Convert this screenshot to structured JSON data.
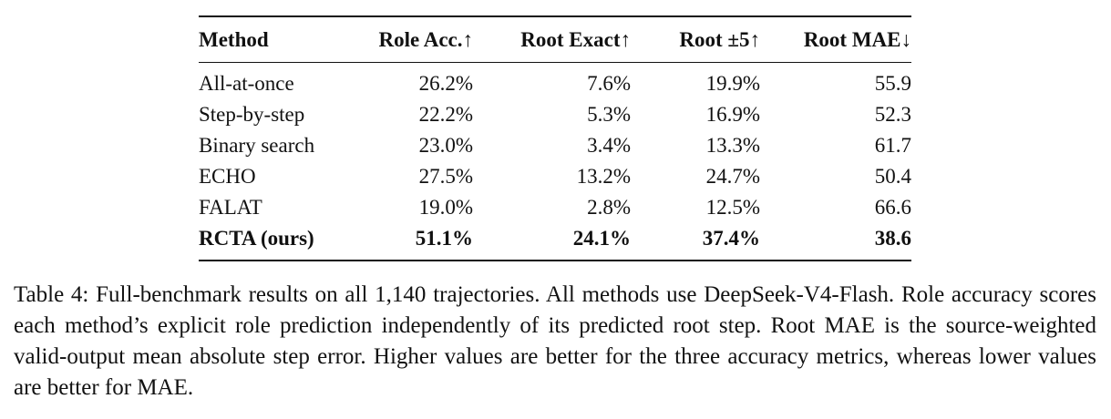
{
  "table": {
    "header": [
      "Method",
      "Role Acc.↑",
      "Root Exact↑",
      "Root ±5↑",
      "Root MAE↓"
    ],
    "rows": [
      [
        "All-at-once",
        "26.2%",
        "7.6%",
        "19.9%",
        "55.9"
      ],
      [
        "Step-by-step",
        "22.2%",
        "5.3%",
        "16.9%",
        "52.3"
      ],
      [
        "Binary search",
        "23.0%",
        "3.4%",
        "13.3%",
        "61.7"
      ],
      [
        "ECHO",
        "27.5%",
        "13.2%",
        "24.7%",
        "50.4"
      ],
      [
        "FALAT",
        "19.0%",
        "2.8%",
        "12.5%",
        "66.6"
      ],
      [
        "RCTA (ours)",
        "51.1%",
        "24.1%",
        "37.4%",
        "38.6"
      ]
    ],
    "bold_row": 5
  },
  "caption": "Table 4: Full-benchmark results on all 1,140 trajectories. All methods use DeepSeek-V4-Flash. Role accuracy scores each method’s explicit role prediction independently of its predicted root step. Root MAE is the source-weighted valid-output mean absolute step error. Higher values are better for the three accuracy metrics, whereas lower values are better for MAE."
}
